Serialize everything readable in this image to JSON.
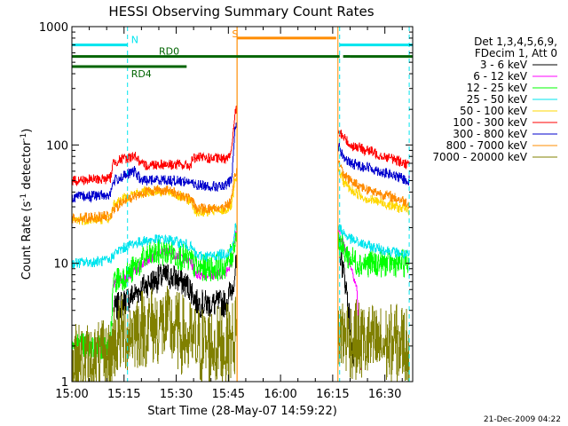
{
  "chart_data": {
    "type": "line",
    "title": "HESSI Observing Summary Count Rates",
    "xlabel": "Start Time (28-May-07 14:59:22)",
    "ylabel_main": "Count Rate (s",
    "ylabel_sup1": "-1",
    "ylabel_mid": " detector",
    "ylabel_sup2": "-1",
    "ylabel_end": ")",
    "yscale": "log",
    "ylim": [
      1,
      1000
    ],
    "xlim_minutes": [
      0,
      98
    ],
    "y_ticks": [
      "1",
      "10",
      "100",
      "1000"
    ],
    "y_tick_values": [
      1,
      10,
      100,
      1000
    ],
    "x_ticks": [
      "15:00",
      "15:15",
      "15:30",
      "15:45",
      "16:00",
      "16:15",
      "16:30"
    ],
    "x_tick_minutes": [
      0,
      15,
      30,
      45,
      60,
      75,
      90
    ],
    "legend_header": [
      "Det 1,3,4,5,6,9,",
      "FDecim 1, Att 0"
    ],
    "legend_position": "right",
    "footer_timestamp": "21-Dec-2009 04:22",
    "flags": [
      {
        "name": "N",
        "color": "#00e5ee",
        "y": 700,
        "label_minute": 16,
        "segments": [
          [
            0,
            16
          ],
          [
            77,
            98
          ]
        ]
      },
      {
        "name": "RD0",
        "color": "#006400",
        "y": 560,
        "label_minute": 24,
        "segments": [
          [
            0,
            77
          ],
          [
            78,
            80
          ],
          [
            80,
            98
          ]
        ]
      },
      {
        "name": "RD4",
        "color": "#006400",
        "y": 460,
        "label_minute": 16,
        "segments": [
          [
            0,
            33
          ]
        ]
      },
      {
        "name": "S",
        "color": "#ff8c00",
        "y": 800,
        "label_minute": 45,
        "segments": [
          [
            47.5,
            76
          ]
        ]
      }
    ],
    "gaps": [
      [
        47.5,
        76.5
      ]
    ],
    "vlines": [
      {
        "minute": 0,
        "color": "#00e5ee"
      },
      {
        "minute": 16,
        "color": "#00e5ee"
      },
      {
        "minute": 77,
        "color": "#00e5ee"
      },
      {
        "minute": 97,
        "color": "#00e5ee"
      },
      {
        "minute": 47.5,
        "color": "#ff8c00"
      },
      {
        "minute": 76.5,
        "color": "#ff8c00"
      }
    ],
    "series": [
      {
        "name": "3 - 6 keV",
        "color": "#000000",
        "points": [
          [
            12,
            4
          ],
          [
            14,
            4.5
          ],
          [
            17,
            5.2
          ],
          [
            21,
            6.5
          ],
          [
            25,
            7.5
          ],
          [
            28,
            7.8
          ],
          [
            31,
            7.2
          ],
          [
            34,
            6.2
          ],
          [
            36,
            4.6
          ],
          [
            40,
            4.5
          ],
          [
            44,
            4.6
          ],
          [
            46,
            6
          ],
          [
            47,
            9
          ],
          [
            47.5,
            9
          ],
          [
            77,
            13
          ],
          [
            78,
            9
          ],
          [
            79,
            6
          ],
          [
            80,
            3
          ],
          [
            81,
            1.5
          ]
        ]
      },
      {
        "name": "6 - 12 keV",
        "color": "#ff00ff",
        "points": [
          [
            12,
            6.5
          ],
          [
            14,
            7
          ],
          [
            17,
            8
          ],
          [
            21,
            10.5
          ],
          [
            25,
            12.2
          ],
          [
            28,
            12.5
          ],
          [
            31,
            11.5
          ],
          [
            34,
            10.5
          ],
          [
            36,
            8
          ],
          [
            40,
            8
          ],
          [
            44,
            8.2
          ],
          [
            46,
            10.5
          ],
          [
            47,
            17
          ],
          [
            47.5,
            17
          ],
          [
            77,
            18
          ],
          [
            78,
            15
          ],
          [
            79,
            13
          ],
          [
            80,
            10
          ],
          [
            81,
            8
          ],
          [
            82,
            6
          ],
          [
            83,
            1
          ]
        ]
      },
      {
        "name": "12 - 25 keV",
        "color": "#00ff00",
        "points": [
          [
            0,
            2
          ],
          [
            11,
            2
          ],
          [
            12,
            7
          ],
          [
            14,
            7.5
          ],
          [
            17,
            8.5
          ],
          [
            21,
            11
          ],
          [
            25,
            12.3
          ],
          [
            28,
            12.5
          ],
          [
            31,
            11.5
          ],
          [
            34,
            10.5
          ],
          [
            36,
            9
          ],
          [
            40,
            9.2
          ],
          [
            44,
            9.5
          ],
          [
            46,
            11.5
          ],
          [
            47,
            17
          ],
          [
            47.5,
            17
          ],
          [
            77,
            15
          ],
          [
            78,
            13
          ],
          [
            79,
            12
          ],
          [
            80,
            11
          ],
          [
            81,
            10.5
          ],
          [
            83,
            10
          ],
          [
            97,
            10
          ]
        ]
      },
      {
        "name": "25 - 50 keV",
        "color": "#00e5ee",
        "points": [
          [
            0,
            10
          ],
          [
            11,
            10.5
          ],
          [
            12,
            12
          ],
          [
            14,
            13
          ],
          [
            17,
            14.5
          ],
          [
            21,
            15.5
          ],
          [
            25,
            16
          ],
          [
            28,
            15.8
          ],
          [
            31,
            15
          ],
          [
            34,
            14
          ],
          [
            36,
            11.5
          ],
          [
            40,
            11.5
          ],
          [
            44,
            12
          ],
          [
            46,
            13
          ],
          [
            47,
            20
          ],
          [
            47.5,
            20
          ],
          [
            77,
            20
          ],
          [
            79,
            17
          ],
          [
            81,
            15.5
          ],
          [
            85,
            14
          ],
          [
            90,
            13
          ],
          [
            95,
            12
          ],
          [
            97,
            11.5
          ]
        ]
      },
      {
        "name": "50 - 100 keV",
        "color": "#ffd700",
        "points": [
          [
            0,
            23
          ],
          [
            11,
            24
          ],
          [
            12,
            31
          ],
          [
            14,
            34
          ],
          [
            17,
            38
          ],
          [
            21,
            40
          ],
          [
            25,
            41
          ],
          [
            28,
            40
          ],
          [
            31,
            37
          ],
          [
            34,
            34
          ],
          [
            36,
            27
          ],
          [
            40,
            27.5
          ],
          [
            44,
            28
          ],
          [
            46,
            31
          ],
          [
            47,
            50
          ],
          [
            47.5,
            50
          ],
          [
            77,
            60
          ],
          [
            78,
            50
          ],
          [
            80,
            42
          ],
          [
            85,
            35
          ],
          [
            90,
            32
          ],
          [
            95,
            29
          ],
          [
            97,
            28
          ]
        ]
      },
      {
        "name": "100 - 300 keV",
        "color": "#ff0000",
        "points": [
          [
            0,
            50
          ],
          [
            11,
            52
          ],
          [
            12,
            72
          ],
          [
            14,
            75
          ],
          [
            17,
            79
          ],
          [
            18,
            83
          ],
          [
            20,
            67
          ],
          [
            25,
            69
          ],
          [
            30,
            68
          ],
          [
            34,
            67
          ],
          [
            35,
            78
          ],
          [
            40,
            77
          ],
          [
            44,
            76
          ],
          [
            46,
            90
          ],
          [
            47,
            200
          ],
          [
            47.5,
            200
          ],
          [
            77,
            125
          ],
          [
            78,
            118
          ],
          [
            80,
            100
          ],
          [
            85,
            90
          ],
          [
            90,
            80
          ],
          [
            95,
            72
          ],
          [
            97,
            67
          ]
        ]
      },
      {
        "name": "300 - 800 keV",
        "color": "#0000cd",
        "points": [
          [
            0,
            36
          ],
          [
            11,
            38
          ],
          [
            12,
            50
          ],
          [
            14,
            53
          ],
          [
            17,
            58
          ],
          [
            18,
            60
          ],
          [
            20,
            50
          ],
          [
            25,
            51
          ],
          [
            30,
            50
          ],
          [
            34,
            49
          ],
          [
            35,
            46
          ],
          [
            40,
            45
          ],
          [
            44,
            44
          ],
          [
            46,
            52
          ],
          [
            47,
            150
          ],
          [
            47.5,
            150
          ],
          [
            77,
            95
          ],
          [
            78,
            80
          ],
          [
            80,
            70
          ],
          [
            85,
            65
          ],
          [
            90,
            58
          ],
          [
            95,
            52
          ],
          [
            97,
            50
          ]
        ]
      },
      {
        "name": "800 - 7000 keV",
        "color": "#ff8c00",
        "points": [
          [
            0,
            24
          ],
          [
            11,
            25
          ],
          [
            12,
            28
          ],
          [
            14,
            32
          ],
          [
            17,
            36
          ],
          [
            21,
            40
          ],
          [
            25,
            42
          ],
          [
            28,
            41
          ],
          [
            31,
            38
          ],
          [
            34,
            35
          ],
          [
            36,
            29
          ],
          [
            40,
            29
          ],
          [
            44,
            30
          ],
          [
            46,
            34
          ],
          [
            47,
            60
          ],
          [
            47.5,
            60
          ],
          [
            77,
            70
          ],
          [
            78,
            58
          ],
          [
            80,
            50
          ],
          [
            85,
            42
          ],
          [
            90,
            38
          ],
          [
            95,
            34
          ],
          [
            97,
            32
          ]
        ]
      },
      {
        "name": "7000 - 20000 keV",
        "color": "#808000",
        "points": [
          [
            0,
            1.4
          ],
          [
            11,
            1.5
          ],
          [
            12,
            2.2
          ],
          [
            14,
            2.5
          ],
          [
            17,
            2.7
          ],
          [
            21,
            2.9
          ],
          [
            25,
            3
          ],
          [
            28,
            2.9
          ],
          [
            31,
            2.6
          ],
          [
            34,
            2.2
          ],
          [
            36,
            2
          ],
          [
            40,
            2
          ],
          [
            44,
            2
          ],
          [
            46,
            2.2
          ],
          [
            47,
            2.5
          ],
          [
            47.5,
            2.5
          ],
          [
            77,
            2.6
          ],
          [
            80,
            2.3
          ],
          [
            85,
            2.1
          ],
          [
            90,
            2
          ],
          [
            95,
            2.1
          ],
          [
            97,
            2
          ]
        ]
      }
    ]
  }
}
